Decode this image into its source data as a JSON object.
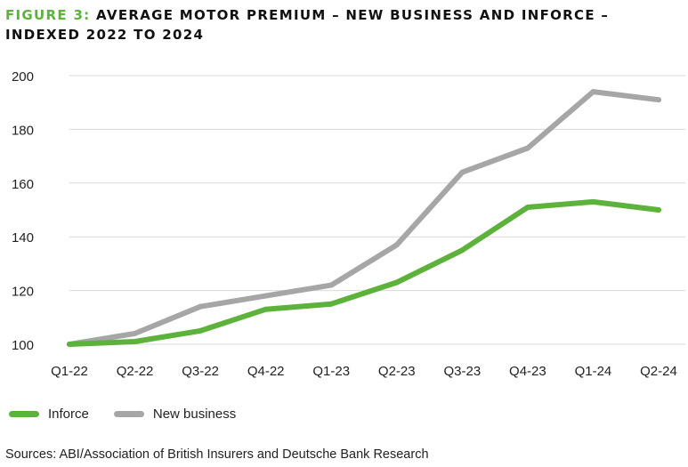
{
  "header": {
    "figure_label": "FIGURE 3:",
    "title_line1": "AVERAGE MOTOR PREMIUM – NEW BUSINESS AND INFORCE –",
    "title_line2": "INDEXED 2022 TO 2024"
  },
  "footer": {
    "source": "Sources: ABI/Association of British Insurers and Deutsche Bank Research"
  },
  "colors": {
    "inforce": "#5cb23a",
    "new_business": "#a6a6a6",
    "figure_label": "#5cb23a",
    "gridline": "#d9d9d9"
  },
  "chart_data": {
    "type": "line",
    "title": "FIGURE 3: AVERAGE MOTOR PREMIUM – NEW BUSINESS AND INFORCE – INDEXED 2022 TO 2024",
    "xlabel": "",
    "ylabel": "",
    "categories": [
      "Q1-22",
      "Q2-22",
      "Q3-22",
      "Q4-22",
      "Q1-23",
      "Q2-23",
      "Q3-23",
      "Q4-23",
      "Q1-24",
      "Q2-24"
    ],
    "ylim": [
      100,
      200
    ],
    "yticks": [
      100,
      120,
      140,
      160,
      180,
      200
    ],
    "grid": true,
    "legend_position": "bottom-left",
    "series": [
      {
        "name": "Inforce",
        "color": "#5cb23a",
        "values": [
          100,
          101,
          105,
          113,
          115,
          123,
          135,
          151,
          153,
          150
        ]
      },
      {
        "name": "New business",
        "color": "#a6a6a6",
        "values": [
          100,
          104,
          114,
          118,
          122,
          137,
          164,
          173,
          194,
          191
        ]
      }
    ]
  }
}
